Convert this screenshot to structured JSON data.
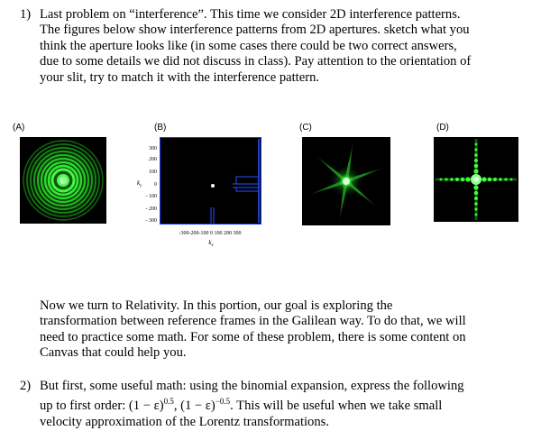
{
  "question1": {
    "number": "1)",
    "lines": [
      "Last problem on “interference”. This time we consider 2D interference patterns.",
      "The figures below show interference patterns from 2D apertures.  sketch what you",
      "think the aperture looks like (in some cases there could be two correct answers,",
      "due to some details we did not discuss in class). Pay attention to the orientation of",
      "your slit, try to match it with the interference pattern."
    ]
  },
  "panels": {
    "a": {
      "label": "(A)",
      "description": "green concentric ring interference pattern"
    },
    "b": {
      "label": "(B)",
      "y_ticks": [
        "300",
        "200",
        "100",
        "0",
        "- 100",
        "- 200",
        "- 300"
      ],
      "x_ticks": "-300-200-100  0   100  200  300",
      "ylabel": "k",
      "ylabel_sub": "y",
      "xlabel": "k",
      "xlabel_sub": "x"
    },
    "c": {
      "label": "(C)",
      "description": "green six-pointed star interference pattern"
    },
    "d": {
      "label": "(D)",
      "description": "green cross-shaped dotted interference pattern"
    }
  },
  "relativity_intro": {
    "lines": [
      "Now we turn to Relativity. In this portion, our goal is exploring the",
      "transformation between reference frames in the Galilean way. To do that, we will",
      "need to practice some math. For some of these problem, there is some content on",
      "Canvas that could help you."
    ]
  },
  "question2": {
    "number": "2)",
    "line1": "But first, some useful math: using the binomial expansion, express the following",
    "line2_a": "up to first order: (1 − ε)",
    "exp1": "0.5",
    "line2_b": ", (1 − ε)",
    "exp2": "−0.5",
    "line2_c": ". This will be useful when we take small",
    "line3": "velocity approximation of the Lorentz transformations."
  },
  "colors": {
    "pattern_green": "#3cff3c",
    "figure_bg": "#000000",
    "figure_b_edge": "#1a3cff"
  }
}
